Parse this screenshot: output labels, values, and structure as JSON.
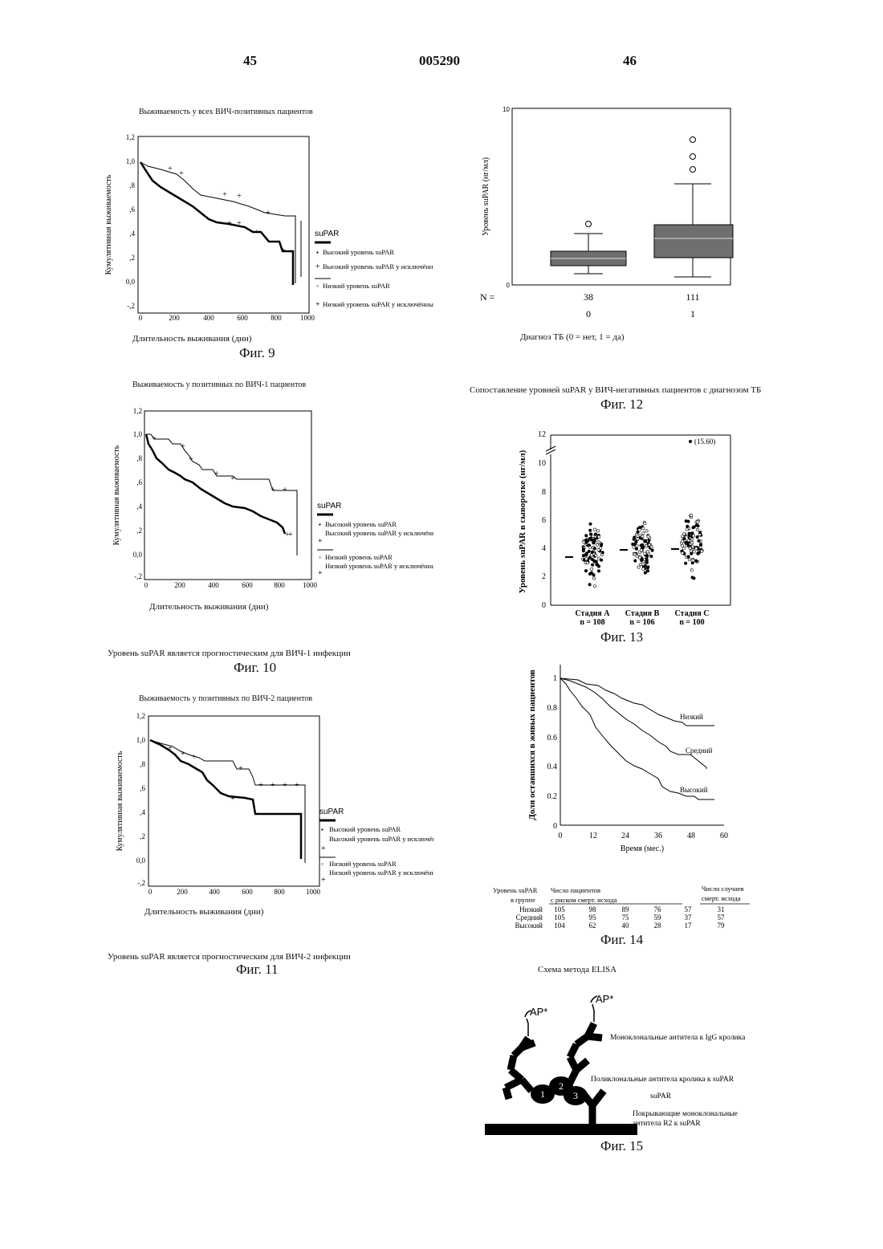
{
  "header": {
    "left_page": "45",
    "patent_number": "005290",
    "right_page": "46"
  },
  "fig9": {
    "title": "Выживаемость у всех ВИЧ-позитивных пациентов",
    "ylabel": "Кумулятивная выживаемость",
    "xlabel": "Длительность выживания (дни)",
    "caption": "Фиг. 9",
    "legend_title": "suPAR",
    "legend": [
      "Высокий уровень suPAR",
      "Высокий уровень suPAR у исключённых",
      "Низкий уровень suPAR",
      "Низкий уровень suPAR у исключённых"
    ],
    "yticks": [
      "1,2",
      "1,0",
      ",8",
      ",6",
      ",4",
      ",2",
      "0,0",
      "-,2"
    ],
    "xticks": [
      "0",
      "200",
      "400",
      "600",
      "800",
      "1000"
    ]
  },
  "fig10": {
    "title": "Выживаемость у позитивных по ВИЧ-1 пациентов",
    "ylabel": "Кумулятивная выживаемость",
    "xlabel": "Длительность выживания (дни)",
    "caption": "Фиг. 10",
    "note": "Уровень suPAR является прогностическим для ВИЧ-1 инфекции",
    "legend_title": "suPAR",
    "legend": [
      "Высокий уровень suPAR",
      "Высокий уровень suPAR у исключённых",
      "Низкий уровень suPAR",
      "Низкий уровень suPAR у исключённых"
    ],
    "yticks": [
      "1,2",
      "1,0",
      ",8",
      ",6",
      ",4",
      ",2",
      "0,0",
      "-,2"
    ],
    "xticks": [
      "0",
      "200",
      "400",
      "600",
      "800",
      "1000"
    ]
  },
  "fig11": {
    "title": "Выживаемость у позитивных по ВИЧ-2 пациентов",
    "ylabel": "Кумулятивная выживаемость",
    "xlabel": "Длительность выживания (дни)",
    "caption": "Фиг. 11",
    "note": "Уровень suPAR является прогностическим для ВИЧ-2 инфекции",
    "legend_title": "suPAR",
    "legend": [
      "Высокий уровень suPAR",
      "Высокий уровень suPAR у исключённых",
      "Низкий уровень suPAR",
      "Низкий уровень suPAR у исключённых"
    ],
    "yticks": [
      "1,2",
      "1,0",
      ",8",
      ",6",
      ",4",
      ",2",
      "0,0",
      "-,2"
    ],
    "xticks": [
      "0",
      "200",
      "400",
      "600",
      "800",
      "1000"
    ]
  },
  "fig12": {
    "ylabel": "Уровень suPAR (нг/мл)",
    "yticks": [
      "10",
      "0"
    ],
    "n_label": "N =",
    "groups": [
      {
        "n": "38",
        "label": "0"
      },
      {
        "n": "111",
        "label": "1"
      }
    ],
    "xlabel": "Диагноз ТБ (0 = нет, 1 = да)",
    "note": "Сопоставление уровней suPAR у ВИЧ-негативных пациентов с диагнозом ТБ",
    "caption": "Фиг. 12"
  },
  "fig13": {
    "ylabel": "Уровень suPAR в сыворотке (нг/мл)",
    "yticks": [
      "12",
      "10",
      "8",
      "6",
      "4",
      "2",
      "0"
    ],
    "outlier_label": "(15.60)",
    "groups": [
      {
        "name": "Стадия A",
        "n": "n = 108"
      },
      {
        "name": "Стадия B",
        "n": "n = 106"
      },
      {
        "name": "Стадия C",
        "n": "n = 100"
      }
    ],
    "caption": "Фиг. 13"
  },
  "fig14": {
    "ylabel": "Доля оставшихся в живых пациентов",
    "xlabel": "Время (мес.)",
    "yticks": [
      "1",
      "0.8",
      "0.6",
      "0.4",
      "0.2",
      "0"
    ],
    "xticks": [
      "0",
      "12",
      "24",
      "36",
      "48",
      "60"
    ],
    "curve_labels": [
      "Низкий",
      "Средний",
      "Высокий"
    ],
    "table": {
      "h1": "Уровень suPAR",
      "h1b": "в группе",
      "h2": "Число пациентов",
      "h2b": "с риском смерт. исхода",
      "h3": "Число случаев",
      "h3b": "смерт. исхода",
      "rows": [
        {
          "name": "Низкий",
          "vals": [
            "105",
            "98",
            "89",
            "76",
            "57"
          ],
          "deaths": "31"
        },
        {
          "name": "Средний",
          "vals": [
            "105",
            "95",
            "75",
            "59",
            "37"
          ],
          "deaths": "57"
        },
        {
          "name": "Высокий",
          "vals": [
            "104",
            "62",
            "40",
            "28",
            "17"
          ],
          "deaths": "79"
        }
      ]
    },
    "caption": "Фиг. 14"
  },
  "fig15": {
    "title": "Схема метода ELISA",
    "ap_label": "AP*",
    "labels": [
      "Моноклональные антитела к IgG кролика",
      "Поликлональные антитела кролика к suPAR",
      "suPAR",
      "Покрывающие моноклональные",
      "антитела R2 к suPAR"
    ],
    "nums": [
      "1",
      "2",
      "3"
    ],
    "caption": "Фиг. 15"
  }
}
